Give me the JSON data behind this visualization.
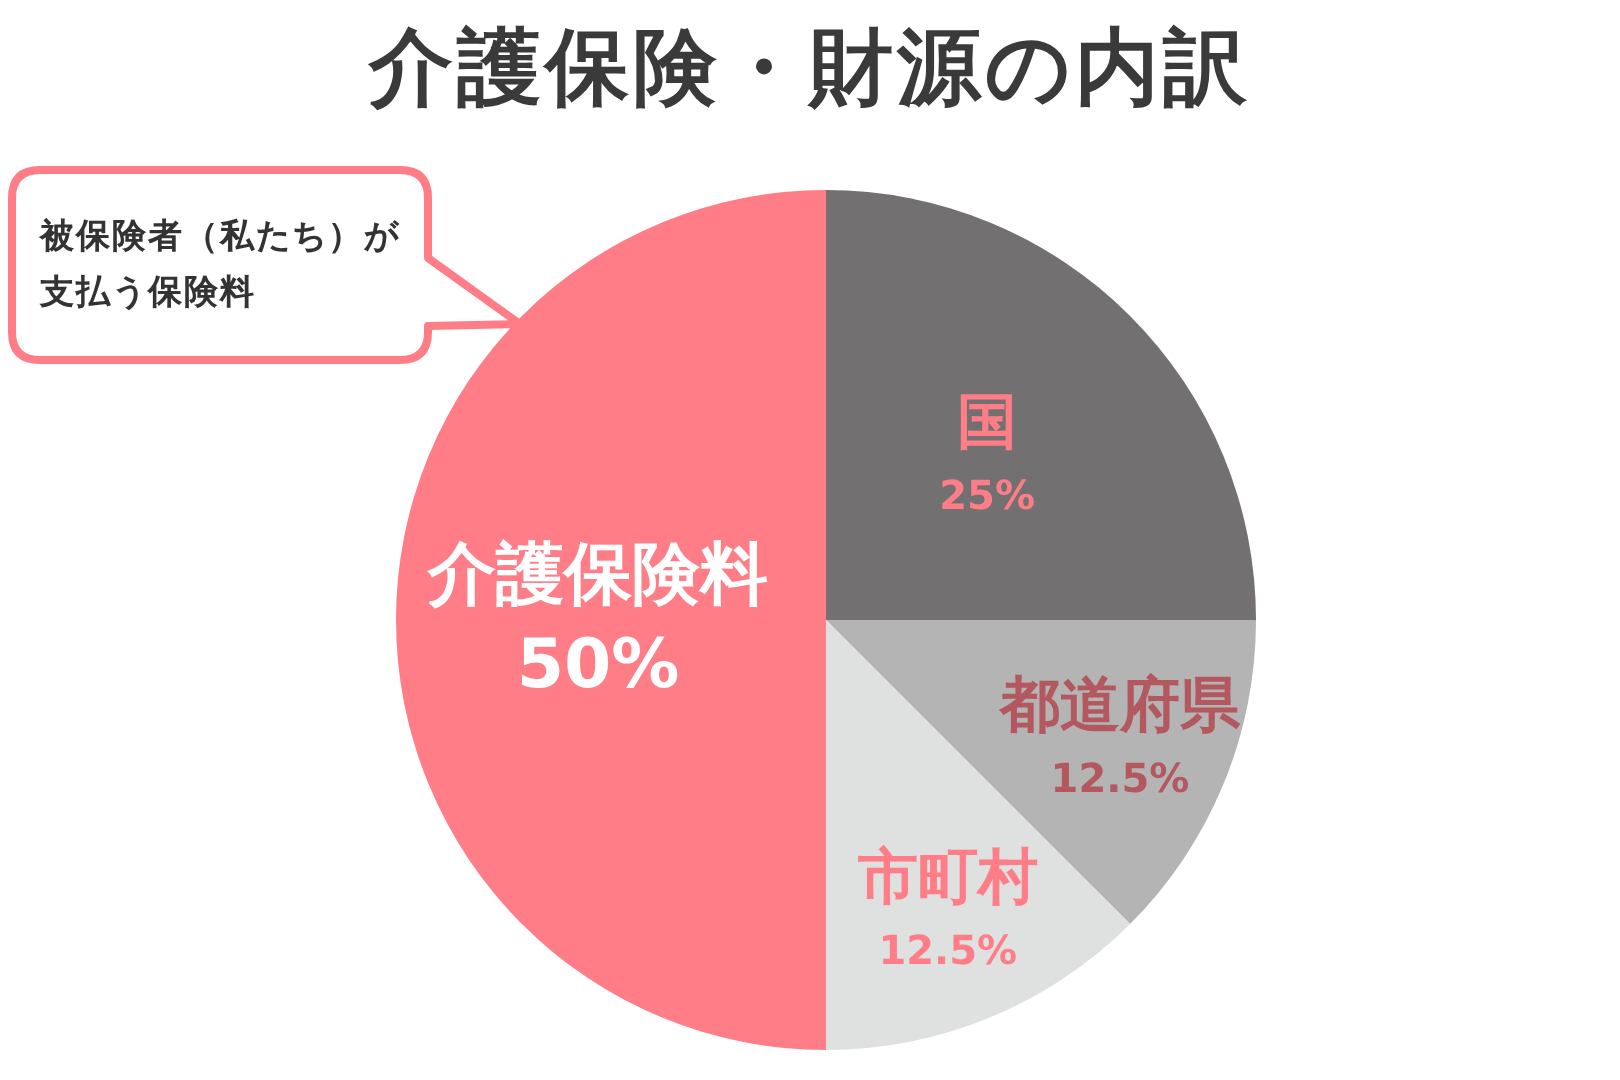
{
  "chart_data": {
    "type": "pie",
    "title": "介護保険・財源の内訳",
    "categories": [
      "国",
      "都道府県",
      "市町村",
      "介護保険料"
    ],
    "values": [
      25,
      12.5,
      12.5,
      50
    ],
    "colors": [
      "#737071",
      "#b4b4b5",
      "#dfe0e0",
      "#ff7d87"
    ],
    "value_labels": [
      "25%",
      "12.5%",
      "12.5%",
      "50%"
    ],
    "annotations": [
      "被保険者（私たち）が支払う保険料"
    ]
  }
}
